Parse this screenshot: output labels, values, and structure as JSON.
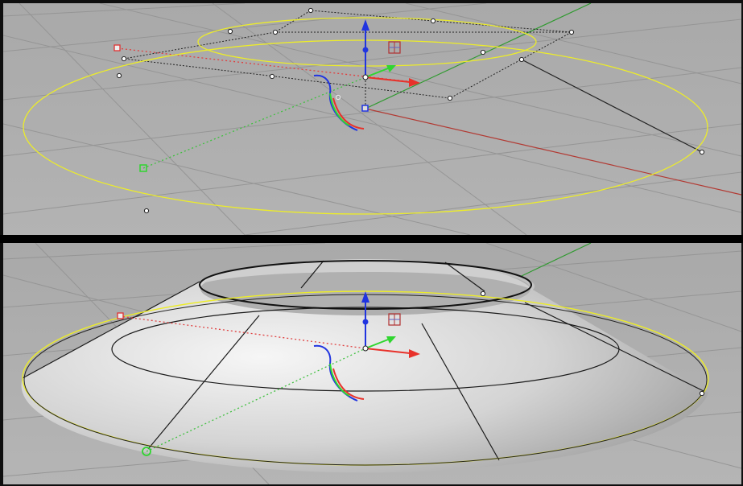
{
  "viewports": {
    "top": {
      "background": "#a6a6a6",
      "background_light": "#b4b4b4"
    },
    "bottom": {
      "background": "#a6a6a6",
      "background_light": "#b7b7b7"
    }
  },
  "colors": {
    "curve": "#ecec2a",
    "grid": "#8e8e8e",
    "grid_major": "#7d7d7d",
    "axis_x": "#b23a33",
    "axis_y": "#2f9a2f",
    "gizmo_x": "#e8312a",
    "gizmo_y": "#2fd62f",
    "gizmo_z": "#2034e0",
    "surface_light": "#f2f2f2",
    "surface_dark": "#9a9a9a",
    "control_point": "#ffffff",
    "isocurve": "#1a1a1a"
  },
  "icons": [
    "scale-plane-handle-icon",
    "arrow-x-icon",
    "arrow-y-icon",
    "arrow-z-icon",
    "rotation-arc-icon"
  ]
}
